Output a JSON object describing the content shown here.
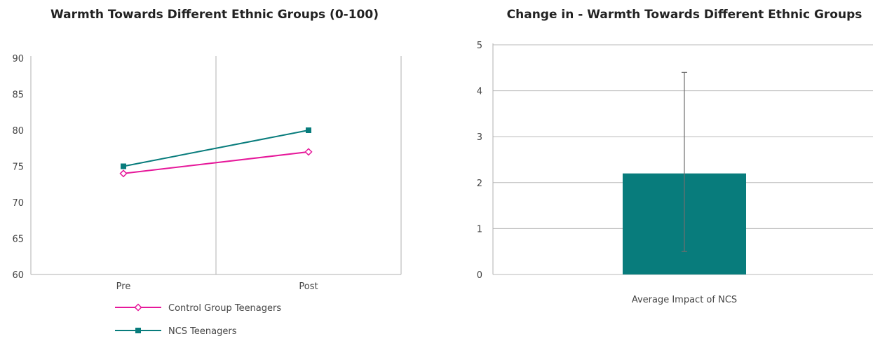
{
  "chart_data": [
    {
      "type": "line",
      "title": "Warmth Towards Different Ethnic Groups (0-100)",
      "categories": [
        "Pre",
        "Post"
      ],
      "ylim": [
        60,
        90
      ],
      "yticks": [
        "90",
        "85",
        "80",
        "75",
        "70",
        "65",
        "60"
      ],
      "legend_position": "bottom",
      "series": [
        {
          "name": "Control Group Teenagers",
          "values": [
            74,
            77
          ],
          "color": "#e6189a",
          "marker": "diamond-open"
        },
        {
          "name": "NCS Teenagers",
          "values": [
            75,
            80
          ],
          "color": "#087c7c",
          "marker": "square"
        }
      ]
    },
    {
      "type": "bar",
      "title": "Change in - Warmth Towards Different Ethnic Groups",
      "categories": [
        "Average Impact of NCS"
      ],
      "values": [
        2.2
      ],
      "error": {
        "low": 0.5,
        "high": 4.4
      },
      "ylim": [
        0,
        5
      ],
      "yticks": [
        "5",
        "4",
        "3",
        "2",
        "1",
        "0"
      ],
      "color": "#087c7c",
      "grid": true
    }
  ]
}
